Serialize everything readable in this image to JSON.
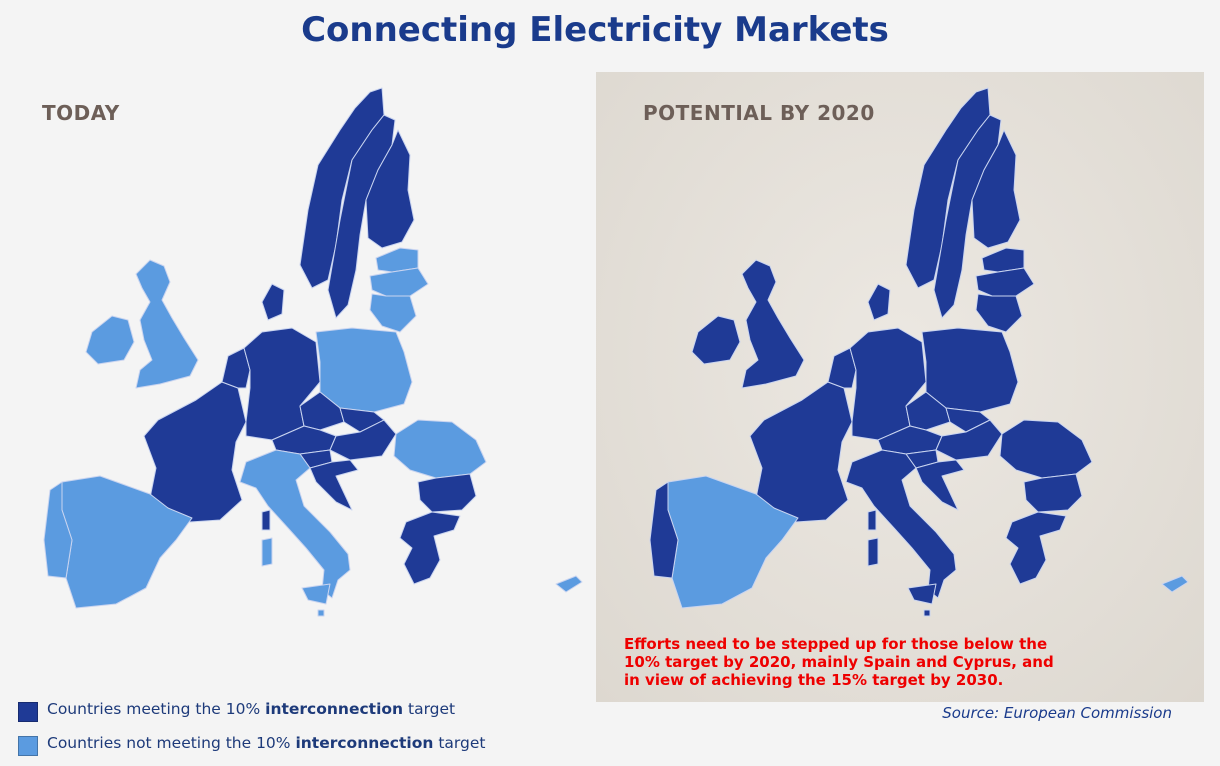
{
  "title": "Connecting Electricity Markets",
  "colors": {
    "meeting": "#1f3a96",
    "not_meeting": "#5b9be0",
    "border": "#c9d4f0"
  },
  "panels": [
    {
      "label": "TODAY",
      "not_meeting": [
        "Ireland",
        "United Kingdom",
        "Spain",
        "Portugal",
        "Italy",
        "Poland",
        "Romania",
        "Estonia",
        "Latvia",
        "Lithuania",
        "Cyprus",
        "Malta"
      ]
    },
    {
      "label": "POTENTIAL BY 2020",
      "not_meeting": [
        "Spain",
        "Cyprus"
      ]
    }
  ],
  "legend": [
    {
      "prefix": "Countries meeting the 10% ",
      "bold": "interconnection",
      "suffix": " target",
      "swatch": "meeting"
    },
    {
      "prefix": "Countries not meeting the 10% ",
      "bold": "interconnection",
      "suffix": " target",
      "swatch": "not_meeting"
    }
  ],
  "note": "Efforts need to be stepped up for those below the 10% target by 2020, mainly Spain and Cyprus, and in view of achieving the 15% target by 2030.",
  "source": "Source: European Commission"
}
